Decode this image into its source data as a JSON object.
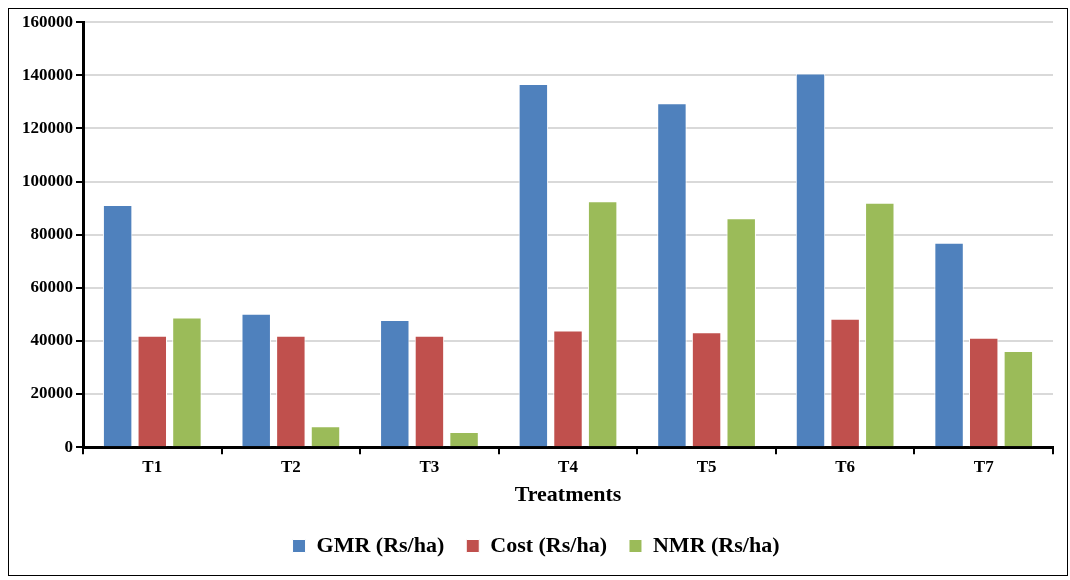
{
  "chart_data": {
    "type": "bar",
    "xlabel": "Treatments",
    "categories": [
      "T1",
      "T2",
      "T3",
      "T4",
      "T5",
      "T6",
      "T7"
    ],
    "series": [
      {
        "name": "GMR (Rs/ha)",
        "color": "#4f81bd",
        "values": [
          91200,
          50200,
          47900,
          136700,
          129500,
          140700,
          77000
        ]
      },
      {
        "name": "Cost (Rs/ha)",
        "color": "#c0504d",
        "values": [
          42000,
          42000,
          42000,
          43900,
          43300,
          48400,
          41200
        ]
      },
      {
        "name": "NMR (Rs/ha)",
        "color": "#9bbb59",
        "values": [
          48800,
          7900,
          5700,
          92600,
          86200,
          92000,
          36200
        ]
      }
    ],
    "ylim": [
      0,
      160000
    ],
    "yticks": [
      0,
      20000,
      40000,
      60000,
      80000,
      100000,
      120000,
      140000,
      160000
    ],
    "grid": "y",
    "legend": "bottom"
  }
}
